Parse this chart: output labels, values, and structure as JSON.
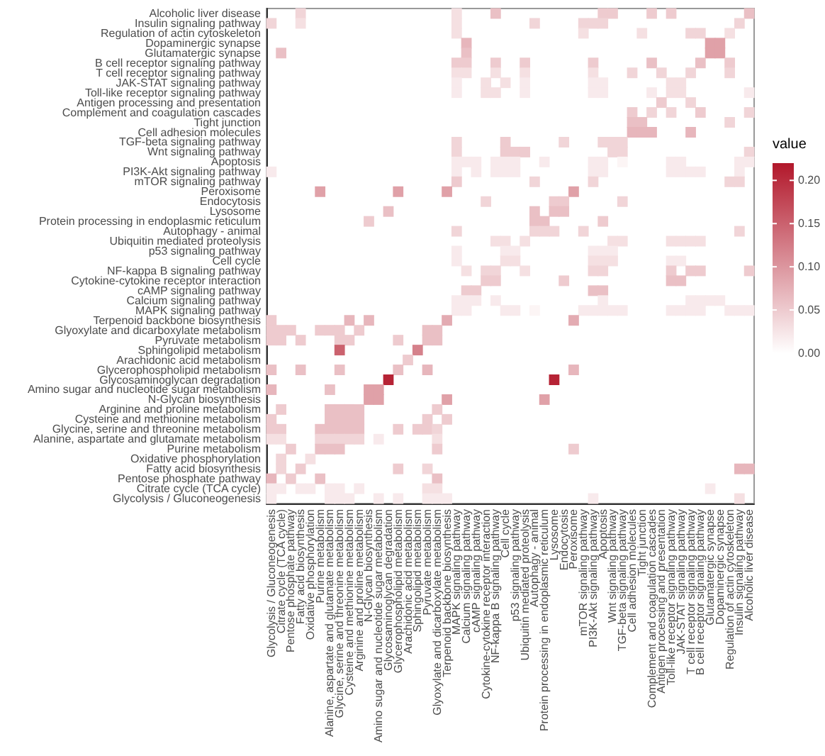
{
  "chart_data": {
    "type": "heatmap",
    "clabel": "value",
    "clim": [
      0,
      0.22
    ],
    "cticks": [
      {
        "value": 0,
        "label": "0.00"
      },
      {
        "value": 0.05,
        "label": "0.05"
      },
      {
        "value": 0.1,
        "label": "0.10"
      },
      {
        "value": 0.15,
        "label": "0.15"
      },
      {
        "value": 0.2,
        "label": "0.20"
      }
    ],
    "categories": [
      "Glycolysis / Gluconeogenesis",
      "Citrate cycle (TCA cycle)",
      "Pentose phosphate pathway",
      "Fatty acid biosynthesis",
      "Oxidative phosphorylation",
      "Purine metabolism",
      "Alanine, aspartate and glutamate metabolism",
      "Glycine, serine and threonine metabolism",
      "Cysteine and methionine metabolism",
      "Arginine and proline metabolism",
      "N-Glycan biosynthesis",
      "Amino sugar and nucleotide sugar metabolism",
      "Glycosaminoglycan degradation",
      "Glycerophospholipid metabolism",
      "Arachidonic acid metabolism",
      "Sphingolipid metabolism",
      "Pyruvate metabolism",
      "Glyoxylate and dicarboxylate metabolism",
      "Terpenoid backbone biosynthesis",
      "MAPK signaling pathway",
      "Calcium signaling pathway",
      "cAMP signaling pathway",
      "Cytokine-cytokine receptor interaction",
      "NF-kappa B signaling pathway",
      "Cell cycle",
      "p53 signaling pathway",
      "Ubiquitin mediated proteolysis",
      "Autophagy - animal",
      "Protein processing in endoplasmic reticulum",
      "Lysosome",
      "Endocytosis",
      "Peroxisome",
      "mTOR signaling pathway",
      "PI3K-Akt signaling pathway",
      "Apoptosis",
      "Wnt signaling pathway",
      "TGF-beta signaling pathway",
      "Cell adhesion molecules",
      "Tight junction",
      "Complement and coagulation cascades",
      "Antigen processing and presentation",
      "Toll-like receptor signaling pathway",
      "JAK-STAT signaling pathway",
      "T cell receptor signaling pathway",
      "B cell receptor signaling pathway",
      "Glutamatergic synapse",
      "Dopaminergic synapse",
      "Regulation of actin cytoskeleton",
      "Insulin signaling pathway",
      "Alcoholic liver disease"
    ],
    "y_categories": [
      "Alcoholic liver disease",
      "Insulin signaling pathway",
      "Regulation of actin cytoskeleton",
      "Dopaminergic synapse",
      "Glutamatergic synapse",
      "B cell receptor signaling pathway",
      "T cell receptor signaling pathway",
      "JAK-STAT signaling pathway",
      "Toll-like receptor signaling pathway",
      "Antigen processing and presentation",
      "Complement and coagulation cascades",
      "Tight junction",
      "Cell adhesion molecules",
      "TGF-beta signaling pathway",
      "Wnt signaling pathway",
      "Apoptosis",
      "PI3K-Akt signaling pathway",
      "mTOR signaling pathway",
      "Peroxisome",
      "Endocytosis",
      "Lysosome",
      "Protein processing in endoplasmic reticulum",
      "Autophagy - animal",
      "Ubiquitin mediated proteolysis",
      "p53 signaling pathway",
      "Cell cycle",
      "NF-kappa B signaling pathway",
      "Cytokine-cytokine receptor interaction",
      "cAMP signaling pathway",
      "Calcium signaling pathway",
      "MAPK signaling pathway",
      "Terpenoid backbone biosynthesis",
      "Glyoxylate and dicarboxylate metabolism",
      "Pyruvate metabolism",
      "Sphingolipid metabolism",
      "Arachidonic acid metabolism",
      "Glycerophospholipid metabolism",
      "Glycosaminoglycan degradation",
      "Amino sugar and nucleotide sugar metabolism",
      "N-Glycan biosynthesis",
      "Arginine and proline metabolism",
      "Cysteine and methionine metabolism",
      "Glycine, serine and threonine metabolism",
      "Alanine, aspartate and glutamate metabolism",
      "Purine metabolism",
      "Oxidative phosphorylation",
      "Fatty acid biosynthesis",
      "Pentose phosphate pathway",
      "Citrate cycle (TCA cycle)",
      "Glycolysis / Gluconeogenesis"
    ],
    "cells": [
      [
        null,
        null,
        null,
        0.04,
        null,
        null,
        null,
        null,
        null,
        null,
        null,
        null,
        null,
        null,
        null,
        null,
        null,
        null,
        null,
        0.03,
        null,
        null,
        null,
        0.06,
        null,
        null,
        null,
        null,
        null,
        null,
        null,
        null,
        null,
        null,
        0.05,
        0.05,
        null,
        null,
        null,
        0.05,
        null,
        0.05,
        null,
        null,
        null,
        null,
        null,
        null,
        null,
        0.06
      ],
      [
        0.04,
        null,
        null,
        0.03,
        null,
        null,
        null,
        null,
        null,
        null,
        null,
        null,
        null,
        null,
        null,
        null,
        null,
        null,
        null,
        0.03,
        null,
        null,
        null,
        null,
        null,
        null,
        null,
        0.04,
        null,
        null,
        null,
        null,
        0.04,
        0.04,
        0.04,
        null,
        null,
        null,
        null,
        null,
        null,
        null,
        null,
        null,
        null,
        null,
        null,
        null,
        0.04,
        null
      ],
      [
        null,
        null,
        null,
        null,
        null,
        null,
        null,
        null,
        null,
        null,
        null,
        null,
        null,
        null,
        null,
        null,
        null,
        null,
        null,
        0.03,
        null,
        null,
        null,
        null,
        null,
        null,
        null,
        null,
        null,
        null,
        null,
        null,
        0.03,
        null,
        null,
        null,
        null,
        null,
        0.03,
        null,
        null,
        null,
        null,
        0.04,
        0.04,
        null,
        null,
        0.03,
        null,
        null
      ],
      [
        null,
        null,
        null,
        null,
        null,
        null,
        null,
        null,
        null,
        null,
        null,
        null,
        null,
        null,
        null,
        null,
        null,
        null,
        null,
        null,
        0.07,
        null,
        null,
        null,
        null,
        null,
        null,
        null,
        null,
        null,
        null,
        null,
        null,
        null,
        null,
        null,
        null,
        null,
        null,
        null,
        null,
        null,
        null,
        null,
        null,
        0.09,
        0.09,
        null,
        null,
        null
      ],
      [
        null,
        0.06,
        null,
        null,
        null,
        null,
        null,
        null,
        null,
        null,
        null,
        null,
        null,
        null,
        null,
        null,
        null,
        null,
        null,
        null,
        0.06,
        null,
        null,
        null,
        null,
        null,
        null,
        null,
        null,
        null,
        null,
        null,
        null,
        null,
        null,
        null,
        null,
        null,
        null,
        null,
        null,
        null,
        null,
        null,
        null,
        0.09,
        0.09,
        null,
        null,
        null
      ],
      [
        null,
        null,
        null,
        null,
        null,
        null,
        null,
        null,
        null,
        null,
        null,
        null,
        null,
        null,
        null,
        null,
        null,
        null,
        null,
        0.05,
        0.05,
        null,
        null,
        0.05,
        null,
        null,
        0.05,
        null,
        null,
        null,
        null,
        null,
        null,
        0.05,
        null,
        null,
        null,
        null,
        null,
        0.06,
        null,
        null,
        null,
        null,
        0.06,
        null,
        null,
        0.05,
        null,
        null
      ],
      [
        null,
        null,
        null,
        null,
        null,
        null,
        null,
        null,
        null,
        null,
        null,
        null,
        null,
        null,
        null,
        null,
        null,
        null,
        null,
        0.03,
        0.03,
        null,
        null,
        0.03,
        null,
        null,
        0.03,
        null,
        null,
        null,
        null,
        null,
        null,
        0.03,
        null,
        null,
        null,
        0.04,
        null,
        null,
        0.04,
        null,
        null,
        0.04,
        null,
        null,
        null,
        0.04,
        null,
        null
      ],
      [
        null,
        null,
        null,
        null,
        null,
        null,
        null,
        null,
        null,
        null,
        null,
        null,
        null,
        null,
        null,
        null,
        null,
        null,
        null,
        0.02,
        null,
        null,
        0.03,
        null,
        0.03,
        null,
        0.02,
        null,
        null,
        null,
        null,
        null,
        null,
        0.02,
        0.02,
        null,
        null,
        null,
        null,
        null,
        null,
        0.03,
        0.03,
        null,
        null,
        null,
        null,
        null,
        null,
        null
      ],
      [
        null,
        null,
        null,
        null,
        null,
        null,
        null,
        null,
        null,
        null,
        null,
        null,
        null,
        null,
        null,
        null,
        null,
        null,
        null,
        0.02,
        null,
        null,
        0.03,
        0.03,
        null,
        null,
        0.02,
        null,
        null,
        null,
        null,
        null,
        null,
        0.02,
        0.02,
        null,
        null,
        null,
        null,
        0.02,
        null,
        0.03,
        0.03,
        null,
        null,
        null,
        null,
        null,
        null,
        0.02
      ],
      [
        null,
        null,
        null,
        null,
        null,
        null,
        null,
        null,
        null,
        null,
        null,
        null,
        null,
        null,
        null,
        null,
        null,
        null,
        null,
        null,
        null,
        null,
        null,
        null,
        null,
        null,
        null,
        null,
        null,
        null,
        null,
        null,
        null,
        null,
        null,
        null,
        null,
        null,
        null,
        null,
        0.05,
        null,
        null,
        0.04,
        null,
        null,
        null,
        null,
        null,
        null
      ],
      [
        null,
        null,
        null,
        null,
        null,
        null,
        null,
        null,
        null,
        null,
        null,
        null,
        null,
        null,
        null,
        null,
        null,
        null,
        null,
        null,
        null,
        null,
        null,
        null,
        null,
        null,
        null,
        null,
        null,
        null,
        null,
        null,
        null,
        null,
        null,
        null,
        null,
        0.05,
        null,
        0.04,
        null,
        0.04,
        null,
        null,
        0.05,
        null,
        null,
        null,
        null,
        0.04
      ],
      [
        null,
        null,
        null,
        null,
        null,
        null,
        null,
        null,
        null,
        null,
        null,
        null,
        null,
        null,
        null,
        null,
        null,
        null,
        null,
        null,
        null,
        null,
        null,
        null,
        null,
        null,
        null,
        null,
        null,
        null,
        null,
        null,
        null,
        null,
        null,
        null,
        null,
        0.06,
        0.06,
        null,
        null,
        null,
        null,
        null,
        null,
        null,
        null,
        0.04,
        null,
        null
      ],
      [
        null,
        null,
        null,
        null,
        null,
        null,
        null,
        null,
        null,
        null,
        null,
        null,
        null,
        null,
        null,
        null,
        null,
        null,
        null,
        null,
        null,
        null,
        null,
        null,
        null,
        null,
        null,
        null,
        null,
        null,
        null,
        null,
        null,
        null,
        null,
        null,
        null,
        0.07,
        0.07,
        0.07,
        null,
        null,
        null,
        0.07,
        null,
        null,
        null,
        null,
        null,
        null
      ],
      [
        null,
        null,
        null,
        null,
        null,
        null,
        null,
        null,
        null,
        null,
        null,
        null,
        null,
        null,
        null,
        null,
        null,
        null,
        null,
        0.04,
        null,
        null,
        null,
        null,
        0.05,
        null,
        null,
        null,
        null,
        null,
        0.04,
        null,
        null,
        null,
        0.04,
        0.04,
        0.04,
        null,
        null,
        null,
        null,
        null,
        null,
        null,
        null,
        null,
        null,
        null,
        null,
        null
      ],
      [
        null,
        null,
        null,
        null,
        null,
        null,
        null,
        null,
        null,
        null,
        null,
        null,
        null,
        null,
        null,
        null,
        null,
        null,
        null,
        0.04,
        null,
        null,
        null,
        null,
        0.05,
        0.05,
        0.05,
        null,
        null,
        null,
        null,
        null,
        null,
        null,
        null,
        0.04,
        0.04,
        null,
        null,
        null,
        null,
        null,
        null,
        null,
        null,
        null,
        null,
        null,
        null,
        0.04
      ],
      [
        null,
        null,
        null,
        null,
        null,
        null,
        null,
        null,
        null,
        null,
        null,
        null,
        null,
        null,
        null,
        null,
        null,
        null,
        null,
        0.02,
        0.02,
        0.02,
        null,
        0.02,
        0.02,
        0.02,
        null,
        null,
        0.02,
        null,
        null,
        null,
        null,
        0.02,
        0.02,
        null,
        0.01,
        null,
        null,
        null,
        null,
        0.02,
        0.02,
        null,
        null,
        null,
        null,
        null,
        0.02,
        0.02
      ],
      [
        0.02,
        null,
        null,
        null,
        null,
        null,
        null,
        null,
        null,
        null,
        null,
        null,
        null,
        null,
        null,
        null,
        null,
        null,
        null,
        0.02,
        null,
        0.02,
        null,
        0.02,
        0.02,
        0.02,
        null,
        null,
        null,
        null,
        null,
        null,
        null,
        0.02,
        0.02,
        null,
        null,
        null,
        null,
        null,
        null,
        0.02,
        0.02,
        0.02,
        0.02,
        null,
        null,
        null,
        0.02,
        null
      ],
      [
        null,
        null,
        null,
        null,
        null,
        null,
        null,
        null,
        null,
        null,
        null,
        null,
        null,
        null,
        null,
        null,
        null,
        null,
        null,
        0.05,
        null,
        null,
        null,
        null,
        null,
        null,
        null,
        0.04,
        null,
        null,
        null,
        null,
        null,
        0.04,
        null,
        null,
        null,
        null,
        null,
        null,
        null,
        null,
        null,
        null,
        null,
        null,
        null,
        0.04,
        0.04,
        null
      ],
      [
        null,
        null,
        null,
        null,
        null,
        0.09,
        null,
        null,
        null,
        null,
        null,
        null,
        null,
        0.09,
        null,
        null,
        null,
        null,
        0.09,
        null,
        null,
        null,
        null,
        null,
        null,
        null,
        null,
        null,
        null,
        null,
        null,
        0.09,
        null,
        null,
        null,
        null,
        null,
        null,
        null,
        null,
        null,
        null,
        null,
        null,
        null,
        null,
        null,
        null,
        null,
        null
      ],
      [
        null,
        null,
        null,
        null,
        null,
        null,
        null,
        null,
        null,
        null,
        null,
        null,
        null,
        null,
        null,
        null,
        null,
        null,
        null,
        null,
        null,
        null,
        0.04,
        null,
        null,
        null,
        null,
        null,
        null,
        0.05,
        0.05,
        null,
        null,
        null,
        null,
        null,
        0.04,
        null,
        null,
        null,
        null,
        null,
        null,
        null,
        null,
        null,
        null,
        null,
        null,
        null
      ],
      [
        null,
        null,
        null,
        null,
        null,
        null,
        null,
        null,
        null,
        null,
        null,
        null,
        0.06,
        null,
        null,
        null,
        null,
        null,
        null,
        null,
        null,
        null,
        null,
        null,
        null,
        null,
        null,
        0.06,
        null,
        0.06,
        0.06,
        null,
        null,
        null,
        null,
        null,
        null,
        null,
        null,
        null,
        null,
        null,
        null,
        null,
        null,
        null,
        null,
        null,
        null,
        null
      ],
      [
        null,
        null,
        null,
        null,
        null,
        null,
        null,
        null,
        null,
        null,
        0.05,
        null,
        null,
        null,
        null,
        null,
        null,
        null,
        null,
        null,
        null,
        null,
        null,
        null,
        null,
        null,
        null,
        0.06,
        0.06,
        null,
        null,
        null,
        null,
        null,
        0.05,
        null,
        null,
        null,
        null,
        null,
        null,
        null,
        null,
        null,
        null,
        null,
        null,
        null,
        null,
        null
      ],
      [
        null,
        null,
        null,
        null,
        null,
        null,
        null,
        null,
        null,
        null,
        null,
        null,
        null,
        null,
        null,
        null,
        null,
        null,
        null,
        0.04,
        null,
        null,
        null,
        null,
        null,
        null,
        null,
        0.04,
        0.04,
        0.04,
        null,
        null,
        0.04,
        null,
        null,
        null,
        null,
        null,
        null,
        null,
        null,
        null,
        null,
        null,
        null,
        null,
        null,
        null,
        0.04,
        null
      ],
      [
        null,
        null,
        null,
        null,
        null,
        null,
        null,
        null,
        null,
        null,
        null,
        null,
        null,
        null,
        null,
        null,
        null,
        null,
        null,
        null,
        null,
        null,
        null,
        0.03,
        0.03,
        null,
        0.03,
        null,
        null,
        null,
        null,
        null,
        null,
        null,
        null,
        0.03,
        0.03,
        null,
        null,
        null,
        null,
        0.03,
        0.03,
        0.03,
        0.03,
        null,
        null,
        null,
        null,
        null
      ],
      [
        null,
        null,
        null,
        null,
        null,
        null,
        null,
        null,
        null,
        null,
        null,
        null,
        null,
        null,
        null,
        null,
        null,
        null,
        null,
        0.02,
        null,
        null,
        null,
        null,
        0.02,
        0.02,
        null,
        null,
        null,
        null,
        null,
        null,
        null,
        0.02,
        0.02,
        0.02,
        null,
        null,
        null,
        null,
        null,
        null,
        null,
        null,
        null,
        null,
        null,
        null,
        null,
        null
      ],
      [
        null,
        null,
        null,
        null,
        null,
        null,
        null,
        null,
        null,
        null,
        null,
        null,
        null,
        null,
        null,
        null,
        null,
        null,
        null,
        0.02,
        null,
        null,
        null,
        null,
        0.03,
        0.03,
        null,
        null,
        null,
        null,
        null,
        null,
        null,
        0.03,
        0.03,
        0.03,
        null,
        null,
        null,
        null,
        null,
        0.02,
        0.02,
        null,
        null,
        null,
        null,
        null,
        null,
        null
      ],
      [
        null,
        null,
        null,
        null,
        null,
        null,
        null,
        null,
        null,
        null,
        null,
        null,
        null,
        null,
        null,
        null,
        null,
        null,
        null,
        null,
        0.03,
        null,
        0.04,
        0.04,
        null,
        null,
        0.03,
        null,
        null,
        null,
        null,
        null,
        null,
        0.04,
        0.04,
        null,
        null,
        null,
        null,
        null,
        null,
        0.05,
        null,
        0.05,
        0.05,
        null,
        null,
        null,
        null,
        0.05
      ],
      [
        null,
        null,
        null,
        null,
        null,
        null,
        null,
        null,
        null,
        null,
        null,
        null,
        null,
        null,
        null,
        null,
        null,
        null,
        null,
        null,
        null,
        null,
        0.05,
        0.05,
        null,
        null,
        null,
        null,
        null,
        null,
        0.05,
        null,
        null,
        null,
        null,
        null,
        null,
        null,
        null,
        null,
        null,
        0.06,
        0.06,
        null,
        null,
        null,
        null,
        null,
        null,
        null
      ],
      [
        null,
        null,
        null,
        null,
        null,
        null,
        null,
        null,
        null,
        null,
        null,
        null,
        null,
        null,
        null,
        null,
        null,
        null,
        null,
        null,
        0.05,
        0.05,
        null,
        null,
        null,
        null,
        null,
        null,
        null,
        null,
        null,
        null,
        null,
        0.06,
        0.06,
        null,
        null,
        null,
        null,
        null,
        null,
        null,
        null,
        null,
        null,
        null,
        null,
        null,
        null,
        null
      ],
      [
        null,
        null,
        null,
        null,
        null,
        null,
        null,
        null,
        null,
        null,
        null,
        null,
        null,
        null,
        null,
        null,
        null,
        null,
        null,
        0.02,
        0.02,
        0.02,
        null,
        0.02,
        null,
        null,
        null,
        null,
        null,
        null,
        null,
        null,
        null,
        null,
        0.02,
        null,
        null,
        null,
        null,
        null,
        null,
        null,
        null,
        0.02,
        0.02,
        0.02,
        0.02,
        null,
        null,
        null
      ],
      [
        null,
        null,
        null,
        null,
        null,
        null,
        null,
        null,
        null,
        null,
        null,
        null,
        null,
        null,
        null,
        null,
        null,
        null,
        null,
        0.02,
        0.02,
        null,
        null,
        null,
        0.02,
        0.02,
        null,
        0.01,
        null,
        null,
        null,
        null,
        0.02,
        0.02,
        0.02,
        0.02,
        0.02,
        null,
        null,
        null,
        null,
        0.02,
        0.02,
        0.02,
        0.02,
        null,
        null,
        0.02,
        0.02,
        0.02
      ],
      [
        0.05,
        null,
        null,
        null,
        null,
        null,
        null,
        null,
        0.07,
        null,
        0.07,
        null,
        null,
        null,
        null,
        null,
        null,
        null,
        0.08,
        null,
        null,
        null,
        null,
        null,
        null,
        null,
        null,
        null,
        null,
        null,
        null,
        0.08,
        null,
        null,
        null,
        null,
        null,
        null,
        null,
        null,
        null,
        null,
        null,
        null,
        null,
        null,
        null,
        null,
        null,
        null
      ],
      [
        0.05,
        0.05,
        0.05,
        null,
        null,
        0.05,
        0.05,
        0.05,
        null,
        0.05,
        null,
        null,
        null,
        null,
        null,
        null,
        0.06,
        0.06,
        null,
        null,
        null,
        null,
        null,
        null,
        null,
        null,
        null,
        null,
        null,
        null,
        null,
        null,
        null,
        null,
        null,
        null,
        null,
        null,
        null,
        null,
        null,
        null,
        null,
        null,
        null,
        null,
        null,
        null,
        null,
        null
      ],
      [
        0.05,
        0.05,
        null,
        0.05,
        null,
        null,
        null,
        0.05,
        0.05,
        null,
        null,
        null,
        null,
        0.05,
        null,
        null,
        0.06,
        0.06,
        null,
        null,
        null,
        null,
        null,
        null,
        null,
        null,
        null,
        null,
        null,
        null,
        null,
        null,
        null,
        null,
        null,
        null,
        null,
        null,
        null,
        null,
        null,
        null,
        null,
        null,
        null,
        null,
        null,
        null,
        null,
        null
      ],
      [
        null,
        null,
        null,
        null,
        null,
        null,
        null,
        0.15,
        null,
        null,
        null,
        null,
        null,
        null,
        null,
        0.12,
        null,
        null,
        null,
        null,
        null,
        null,
        null,
        null,
        null,
        null,
        null,
        null,
        null,
        null,
        null,
        null,
        null,
        null,
        null,
        null,
        null,
        null,
        null,
        null,
        null,
        null,
        null,
        null,
        null,
        null,
        null,
        null,
        null,
        null
      ],
      [
        null,
        null,
        null,
        null,
        null,
        null,
        null,
        null,
        null,
        null,
        null,
        null,
        null,
        null,
        0.05,
        null,
        null,
        null,
        null,
        null,
        null,
        null,
        null,
        null,
        null,
        null,
        null,
        null,
        null,
        null,
        null,
        null,
        null,
        null,
        null,
        null,
        null,
        null,
        null,
        null,
        null,
        null,
        null,
        null,
        null,
        null,
        null,
        null,
        null,
        null
      ],
      [
        0.06,
        null,
        null,
        0.06,
        null,
        null,
        null,
        0.06,
        null,
        null,
        null,
        null,
        null,
        0.06,
        null,
        null,
        0.07,
        null,
        null,
        null,
        null,
        null,
        null,
        null,
        null,
        null,
        null,
        null,
        null,
        null,
        null,
        0.07,
        null,
        null,
        null,
        null,
        null,
        null,
        null,
        null,
        null,
        null,
        null,
        null,
        null,
        null,
        null,
        null,
        null,
        null
      ],
      [
        null,
        null,
        null,
        null,
        null,
        null,
        null,
        null,
        null,
        null,
        null,
        null,
        0.21,
        null,
        null,
        null,
        null,
        null,
        null,
        null,
        null,
        null,
        null,
        null,
        null,
        null,
        null,
        null,
        null,
        0.21,
        null,
        null,
        null,
        null,
        null,
        null,
        null,
        null,
        null,
        null,
        null,
        null,
        null,
        null,
        null,
        null,
        null,
        null,
        null,
        null
      ],
      [
        0.07,
        null,
        null,
        null,
        null,
        null,
        0.06,
        null,
        null,
        null,
        0.09,
        0.09,
        null,
        null,
        null,
        null,
        null,
        null,
        null,
        null,
        null,
        null,
        null,
        null,
        null,
        null,
        null,
        null,
        null,
        null,
        null,
        null,
        null,
        null,
        null,
        null,
        null,
        null,
        null,
        null,
        null,
        null,
        null,
        null,
        null,
        null,
        null,
        null,
        null,
        null
      ],
      [
        null,
        null,
        null,
        null,
        null,
        null,
        null,
        null,
        null,
        null,
        0.09,
        0.09,
        null,
        null,
        null,
        null,
        null,
        null,
        0.09,
        null,
        null,
        null,
        null,
        null,
        null,
        null,
        null,
        null,
        0.09,
        null,
        null,
        null,
        null,
        null,
        null,
        null,
        null,
        null,
        null,
        null,
        null,
        null,
        null,
        null,
        null,
        null,
        null,
        null,
        null,
        null
      ],
      [
        null,
        0.05,
        null,
        null,
        null,
        null,
        0.06,
        0.06,
        0.06,
        0.06,
        null,
        null,
        null,
        null,
        null,
        null,
        null,
        0.05,
        null,
        null,
        null,
        null,
        null,
        null,
        null,
        null,
        null,
        null,
        null,
        null,
        null,
        null,
        null,
        null,
        null,
        null,
        null,
        null,
        null,
        null,
        null,
        null,
        null,
        null,
        null,
        null,
        null,
        null,
        null,
        null
      ],
      [
        0.05,
        null,
        null,
        null,
        null,
        null,
        0.06,
        0.06,
        0.06,
        0.06,
        null,
        null,
        null,
        null,
        null,
        null,
        0.05,
        null,
        0.05,
        null,
        null,
        null,
        null,
        null,
        null,
        null,
        null,
        null,
        null,
        null,
        null,
        null,
        null,
        null,
        null,
        null,
        null,
        null,
        null,
        null,
        null,
        null,
        null,
        null,
        null,
        null,
        null,
        null,
        null,
        null
      ],
      [
        0.05,
        0.05,
        null,
        null,
        null,
        0.06,
        0.06,
        0.06,
        0.06,
        0.06,
        null,
        null,
        null,
        0.05,
        null,
        0.05,
        0.05,
        0.04,
        null,
        null,
        null,
        null,
        null,
        null,
        null,
        null,
        null,
        null,
        null,
        null,
        null,
        null,
        null,
        null,
        null,
        null,
        null,
        null,
        null,
        null,
        null,
        null,
        null,
        null,
        null,
        null,
        null,
        null,
        null,
        null
      ],
      [
        0.03,
        0.03,
        null,
        null,
        null,
        0.04,
        0.04,
        0.04,
        0.04,
        0.04,
        null,
        0.02,
        null,
        null,
        null,
        null,
        null,
        0.03,
        null,
        null,
        null,
        null,
        null,
        null,
        null,
        null,
        null,
        null,
        null,
        null,
        null,
        null,
        null,
        null,
        null,
        null,
        null,
        null,
        null,
        null,
        null,
        null,
        null,
        null,
        null,
        null,
        null,
        null,
        null,
        null
      ],
      [
        null,
        null,
        0.05,
        null,
        null,
        0.06,
        0.06,
        0.06,
        null,
        null,
        null,
        null,
        null,
        null,
        null,
        null,
        null,
        0.05,
        null,
        null,
        null,
        null,
        null,
        null,
        null,
        null,
        null,
        null,
        null,
        null,
        null,
        0.05,
        null,
        null,
        null,
        null,
        null,
        null,
        null,
        null,
        null,
        null,
        null,
        null,
        null,
        null,
        null,
        null,
        null,
        null
      ],
      [
        null,
        0.04,
        null,
        null,
        0.03,
        null,
        null,
        null,
        null,
        null,
        null,
        null,
        null,
        null,
        null,
        null,
        null,
        null,
        null,
        null,
        null,
        null,
        null,
        null,
        null,
        null,
        null,
        null,
        null,
        null,
        null,
        null,
        null,
        null,
        null,
        null,
        null,
        null,
        null,
        null,
        null,
        null,
        null,
        null,
        null,
        null,
        null,
        null,
        null,
        null
      ],
      [
        null,
        0.04,
        null,
        0.05,
        null,
        null,
        null,
        null,
        null,
        null,
        null,
        null,
        null,
        0.05,
        null,
        null,
        0.04,
        null,
        null,
        null,
        null,
        null,
        null,
        null,
        null,
        null,
        null,
        null,
        null,
        null,
        null,
        null,
        null,
        null,
        null,
        null,
        null,
        null,
        null,
        null,
        null,
        null,
        null,
        null,
        null,
        null,
        null,
        null,
        0.07,
        0.07
      ],
      [
        0.07,
        null,
        0.05,
        null,
        null,
        0.06,
        null,
        null,
        null,
        null,
        null,
        null,
        null,
        null,
        null,
        null,
        null,
        0.06,
        null,
        null,
        null,
        null,
        null,
        null,
        null,
        null,
        null,
        null,
        null,
        null,
        null,
        null,
        null,
        null,
        null,
        null,
        null,
        null,
        null,
        null,
        null,
        null,
        null,
        null,
        null,
        null,
        null,
        null,
        null,
        null
      ],
      [
        0.02,
        0.02,
        null,
        0.02,
        0.02,
        null,
        0.02,
        0.02,
        null,
        0.02,
        null,
        null,
        null,
        null,
        null,
        null,
        0.03,
        0.03,
        null,
        null,
        null,
        null,
        null,
        null,
        null,
        null,
        null,
        null,
        null,
        null,
        null,
        null,
        null,
        null,
        null,
        null,
        null,
        null,
        null,
        null,
        null,
        null,
        null,
        null,
        null,
        0.02,
        null,
        null,
        null,
        null
      ],
      [
        0.02,
        null,
        null,
        null,
        null,
        null,
        0.02,
        0.02,
        0.02,
        null,
        null,
        0.02,
        null,
        0.02,
        null,
        null,
        0.02,
        0.02,
        0.02,
        null,
        null,
        null,
        null,
        null,
        null,
        null,
        null,
        null,
        null,
        null,
        null,
        null,
        null,
        0.02,
        null,
        null,
        null,
        null,
        null,
        null,
        null,
        null,
        null,
        null,
        null,
        null,
        null,
        null,
        0.03,
        null
      ]
    ]
  }
}
